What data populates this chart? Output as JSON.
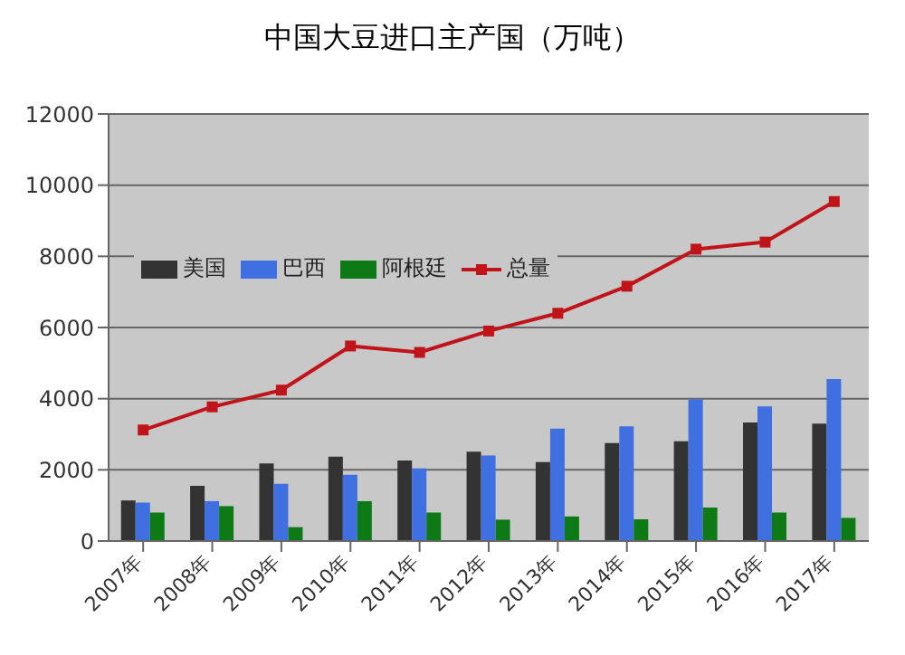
{
  "chart_data": {
    "type": "bar",
    "title": "中国大豆进口主产国（万吨）",
    "categories": [
      "2007年",
      "2008年",
      "2009年",
      "2010年",
      "2011年",
      "2012年",
      "2013年",
      "2014年",
      "2015年",
      "2016年",
      "2017年"
    ],
    "series": [
      {
        "name": "美国",
        "color": "#333333",
        "values": [
          1140,
          1550,
          2180,
          2370,
          2260,
          2510,
          2220,
          2750,
          2800,
          3330,
          3300
        ]
      },
      {
        "name": "巴西",
        "color": "#3f6fe0",
        "values": [
          1080,
          1120,
          1610,
          1860,
          2040,
          2400,
          3160,
          3220,
          3980,
          3780,
          4550
        ]
      },
      {
        "name": "阿根廷",
        "color": "#0e7a16",
        "values": [
          800,
          980,
          390,
          1120,
          800,
          600,
          690,
          610,
          940,
          800,
          650
        ]
      },
      {
        "name": "总量",
        "type": "line",
        "color": "#c0141a",
        "marker": "square",
        "values": [
          3120,
          3770,
          4240,
          5480,
          5300,
          5900,
          6400,
          7160,
          8200,
          8400,
          9540
        ]
      }
    ],
    "ylim": [
      0,
      12000
    ],
    "yticks": [
      0,
      2000,
      4000,
      6000,
      8000,
      10000,
      12000
    ],
    "grid": "y",
    "legend": "top left"
  }
}
